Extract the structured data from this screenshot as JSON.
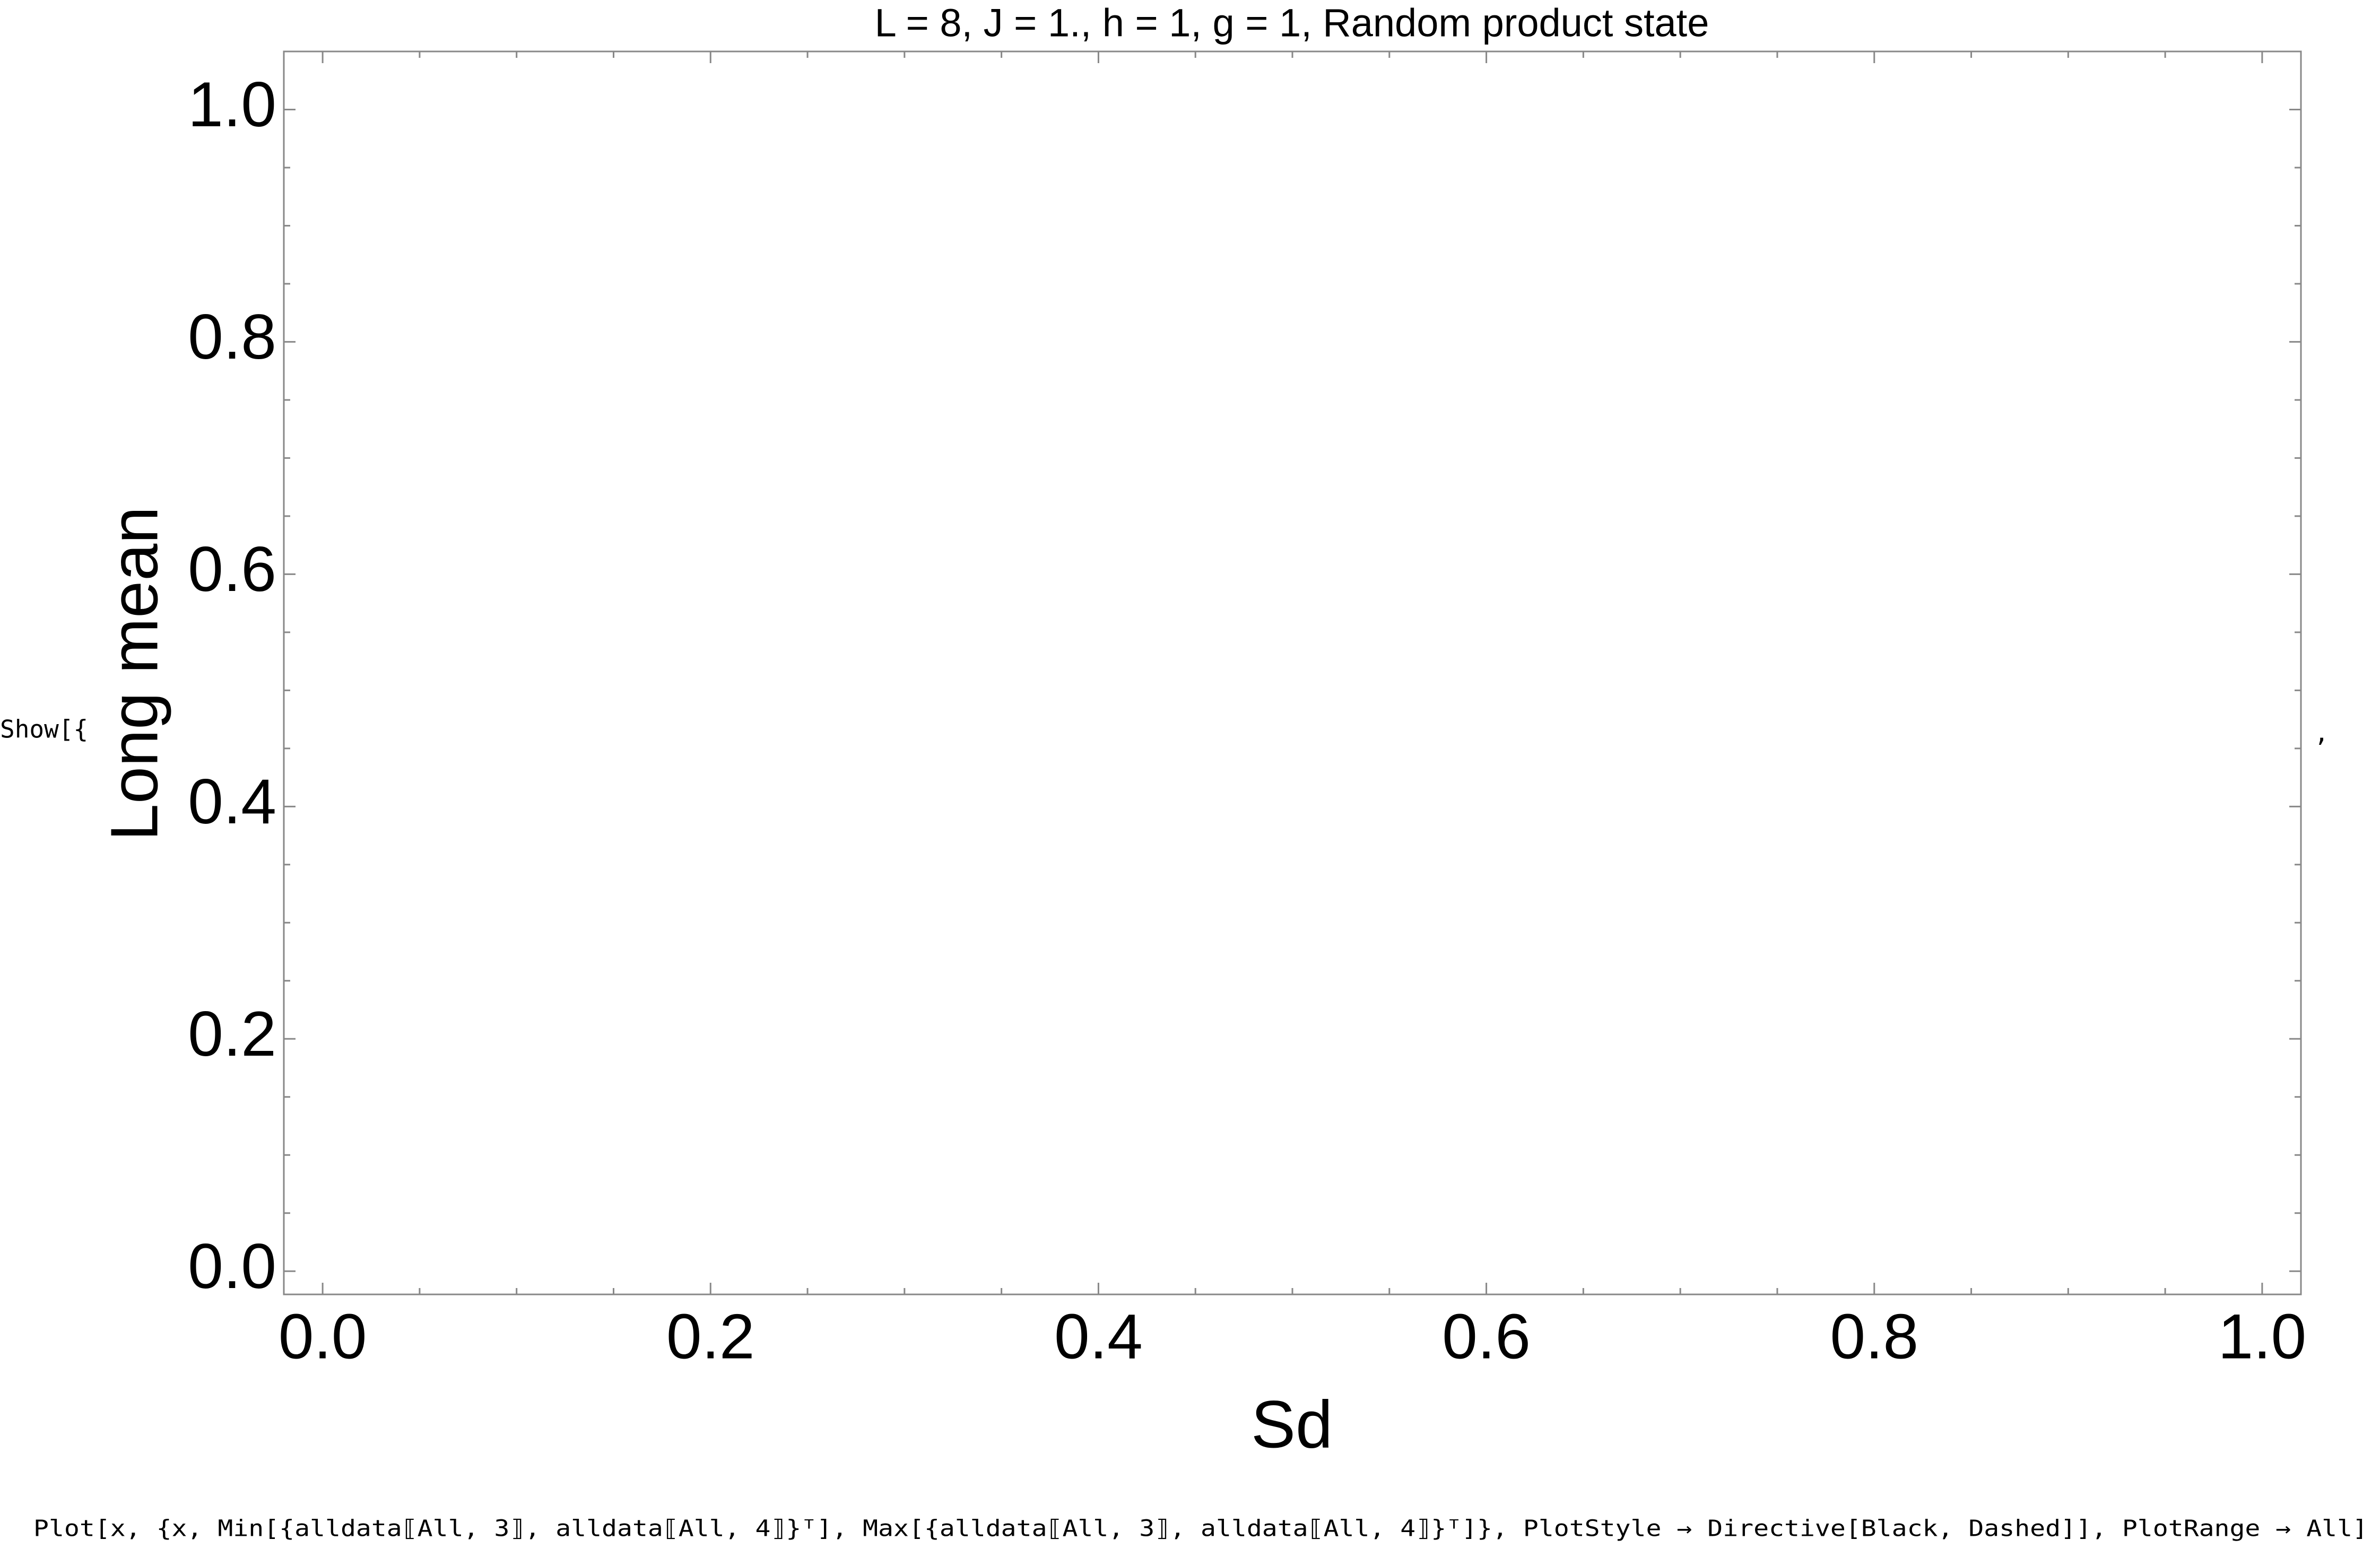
{
  "notebook": {
    "prefix": "Show[{",
    "suffix": ",",
    "plot_call": "Plot[x, {x, Min[{alldata⟦All, 3⟧, alldata⟦All, 4⟧}ᵀ], Max[{alldata⟦All, 3⟧, alldata⟦All, 4⟧}ᵀ]}, PlotStyle → Directive[Black, Dashed]], PlotRange → All]"
  },
  "chart_data": {
    "type": "scatter",
    "title": "L = 8, J = 1., h = 1, g = 1, Random product state",
    "x_label": "Sd",
    "y_label": "Long mean",
    "frame": true,
    "xlim": [
      -0.02,
      1.02
    ],
    "ylim": [
      -0.02,
      1.05
    ],
    "xticks": [
      {
        "value": 0,
        "label": "0.0"
      },
      0.2,
      0.4,
      0.6,
      0.8,
      {
        "value": 1,
        "label": "1.0"
      }
    ],
    "yticks": [
      {
        "value": 0,
        "label": "0.0"
      },
      0.2,
      0.4,
      0.6,
      0.8,
      {
        "value": 1,
        "label": "1.0"
      }
    ],
    "xminorticks": [
      0.05,
      0.1,
      0.15,
      0.25,
      0.3,
      0.35,
      0.45,
      0.5,
      0.55,
      0.65,
      0.7,
      0.75,
      0.85,
      0.9,
      0.95
    ],
    "yminorticks": [
      0.05,
      0.1,
      0.15,
      0.25,
      0.3,
      0.35,
      0.45,
      0.5,
      0.55,
      0.65,
      0.7,
      0.75,
      0.85,
      0.9,
      0.95
    ]
  }
}
